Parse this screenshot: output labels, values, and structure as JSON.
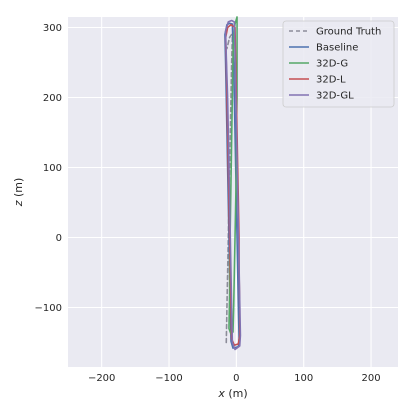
{
  "chart_data": {
    "type": "line",
    "title": "",
    "xlabel": "x (m)",
    "ylabel": "z (m)",
    "xlim": [
      -250,
      240
    ],
    "ylim": [
      -185,
      315
    ],
    "xticks": [
      -200,
      -100,
      0,
      100,
      200
    ],
    "xtick_labels": [
      "−200",
      "−100",
      "0",
      "100",
      "200"
    ],
    "yticks": [
      -100,
      0,
      100,
      200,
      300
    ],
    "ytick_labels": [
      "−100",
      "0",
      "100",
      "200",
      "300"
    ],
    "grid": true,
    "legend": "top-right",
    "series": [
      {
        "name": "Ground Truth",
        "color": "#8c8c99",
        "dashed": true,
        "points": [
          [
            -15,
            -150
          ],
          [
            -14,
            -100
          ],
          [
            -13,
            -50
          ],
          [
            -12,
            0
          ],
          [
            -11,
            50
          ],
          [
            -10,
            100
          ],
          [
            -9,
            150
          ],
          [
            -8,
            200
          ],
          [
            -7,
            250
          ],
          [
            -6,
            285
          ],
          [
            -7,
            290
          ],
          [
            -10,
            286
          ],
          [
            -14,
            270
          ]
        ]
      },
      {
        "name": "Baseline",
        "color": "#4c72b0",
        "dashed": false,
        "points": [
          [
            -6,
            305
          ],
          [
            -4,
            250
          ],
          [
            -3,
            200
          ],
          [
            -2,
            150
          ],
          [
            -1,
            100
          ],
          [
            0,
            50
          ],
          [
            1,
            0
          ],
          [
            2,
            -50
          ],
          [
            3,
            -100
          ],
          [
            4,
            -145
          ],
          [
            3,
            -156
          ],
          [
            -5,
            -158
          ],
          [
            -8,
            -148
          ],
          [
            -9,
            -100
          ],
          [
            -10,
            -50
          ],
          [
            -11,
            0
          ],
          [
            -12,
            50
          ],
          [
            -13,
            100
          ],
          [
            -14,
            150
          ],
          [
            -15,
            200
          ],
          [
            -16,
            250
          ],
          [
            -17,
            290
          ],
          [
            -14,
            304
          ],
          [
            -10,
            306
          ],
          [
            -6,
            305
          ]
        ]
      },
      {
        "name": "32D-G",
        "color": "#55a868",
        "dashed": false,
        "points": [
          [
            1,
            315
          ],
          [
            1,
            250
          ],
          [
            1,
            200
          ],
          [
            0,
            150
          ],
          [
            0,
            100
          ],
          [
            -1,
            50
          ],
          [
            -2,
            0
          ],
          [
            -3,
            -50
          ],
          [
            -4,
            -100
          ],
          [
            -5,
            -135
          ],
          [
            -8,
            -138
          ],
          [
            -11,
            -130
          ],
          [
            -10,
            -80
          ],
          [
            -10,
            -30
          ],
          [
            -9,
            20
          ],
          [
            -8,
            80
          ],
          [
            -7,
            140
          ],
          [
            -6,
            200
          ],
          [
            -5,
            260
          ],
          [
            -4,
            290
          ],
          [
            -2,
            305
          ],
          [
            1,
            315
          ]
        ]
      },
      {
        "name": "32D-L",
        "color": "#c44e52",
        "dashed": false,
        "points": [
          [
            -2,
            300
          ],
          [
            -1,
            250
          ],
          [
            0,
            200
          ],
          [
            1,
            150
          ],
          [
            2,
            100
          ],
          [
            3,
            50
          ],
          [
            4,
            0
          ],
          [
            4,
            -50
          ],
          [
            5,
            -100
          ],
          [
            5,
            -140
          ],
          [
            3,
            -152
          ],
          [
            -3,
            -154
          ],
          [
            -7,
            -145
          ],
          [
            -8,
            -100
          ],
          [
            -9,
            -50
          ],
          [
            -10,
            0
          ],
          [
            -11,
            50
          ],
          [
            -12,
            100
          ],
          [
            -13,
            150
          ],
          [
            -14,
            200
          ],
          [
            -15,
            250
          ],
          [
            -16,
            285
          ],
          [
            -13,
            300
          ],
          [
            -8,
            304
          ],
          [
            -2,
            300
          ]
        ]
      },
      {
        "name": "32D-GL",
        "color": "#8172b2",
        "dashed": false,
        "points": [
          [
            -3,
            308
          ],
          [
            -2,
            260
          ],
          [
            -1,
            210
          ],
          [
            0,
            160
          ],
          [
            1,
            110
          ],
          [
            2,
            60
          ],
          [
            3,
            10
          ],
          [
            4,
            -40
          ],
          [
            5,
            -90
          ],
          [
            6,
            -140
          ],
          [
            5,
            -155
          ],
          [
            -2,
            -160
          ],
          [
            -6,
            -150
          ],
          [
            -7,
            -100
          ],
          [
            -8,
            -50
          ],
          [
            -9,
            0
          ],
          [
            -10,
            50
          ],
          [
            -11,
            100
          ],
          [
            -12,
            150
          ],
          [
            -13,
            200
          ],
          [
            -15,
            260
          ],
          [
            -16,
            295
          ],
          [
            -12,
            308
          ],
          [
            -7,
            310
          ],
          [
            -3,
            308
          ]
        ]
      }
    ]
  }
}
